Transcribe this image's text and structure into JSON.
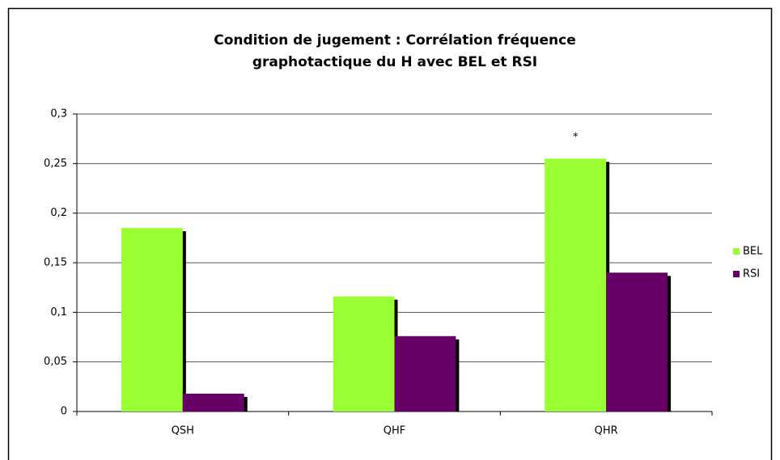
{
  "chart_data": {
    "type": "bar",
    "title": [
      "Condition de jugement : Corrélation fréquence",
      "graphotactique du H avec BEL et RSI"
    ],
    "categories": [
      "QSH",
      "QHF",
      "QHR"
    ],
    "series": [
      {
        "name": "BEL",
        "color": "#99ff33",
        "values": [
          0.185,
          0.116,
          0.255
        ]
      },
      {
        "name": "RSI",
        "color": "#660066",
        "values": [
          0.018,
          0.076,
          0.14
        ]
      }
    ],
    "annotations": [
      {
        "text": "*",
        "category": 2,
        "series": 0
      }
    ],
    "ylim": [
      0,
      0.3
    ],
    "yticks": [
      0,
      {
        "value": 0.05,
        "label": "0,05"
      },
      {
        "value": 0.1,
        "label": "0,1"
      },
      {
        "value": 0.15,
        "label": "0,15"
      },
      {
        "value": 0.2,
        "label": "0,2"
      },
      {
        "value": 0.25,
        "label": "0,25"
      },
      {
        "value": 0.3,
        "label": "0,3"
      }
    ],
    "grid": true,
    "legend": "right"
  }
}
